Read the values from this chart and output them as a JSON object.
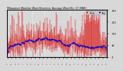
{
  "title": "Milwaukee Weather Wind Direction  Average Wind Dir: 17 (NNE)",
  "bg_color": "#d8d8d8",
  "plot_bg_color": "#d8d8d8",
  "bar_color": "#dd0000",
  "avg_color": "#0000cc",
  "grid_color": "#ffffff",
  "ylim": [
    0,
    360
  ],
  "yticks": [
    0,
    90,
    180,
    270,
    360
  ],
  "num_points": 240,
  "seed": 7
}
